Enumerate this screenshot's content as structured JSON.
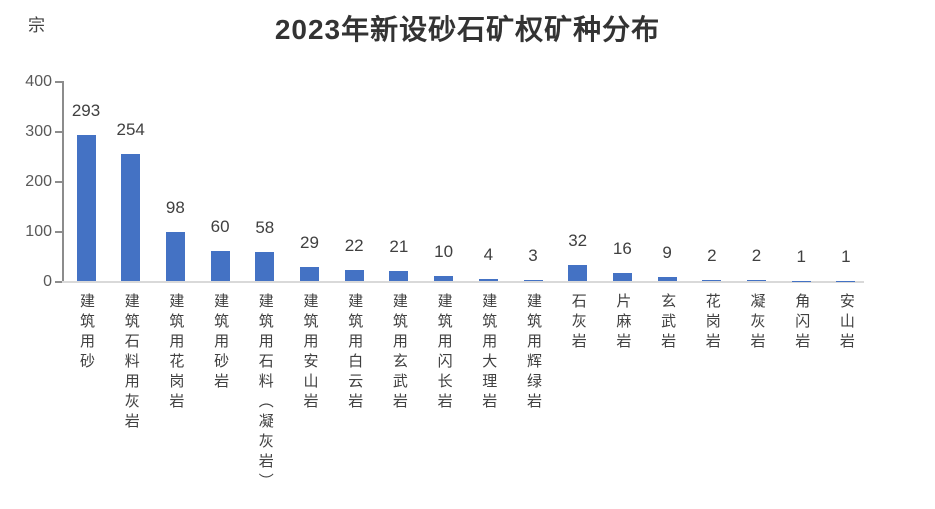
{
  "chart_data": {
    "type": "bar",
    "title": "2023年新设砂石矿权矿种分布",
    "unit_label": "宗",
    "categories": [
      "建筑用砂",
      "建筑石料用灰岩",
      "建筑用花岗岩",
      "建筑用砂岩",
      "建筑用石料（凝灰岩）",
      "建筑用安山岩",
      "建筑用白云岩",
      "建筑用玄武岩",
      "建筑用闪长岩",
      "建筑用大理岩",
      "建筑用辉绿岩",
      "石灰岩",
      "片麻岩",
      "玄武岩",
      "花岗岩",
      "凝灰岩",
      "角闪岩",
      "安山岩"
    ],
    "values": [
      293,
      254,
      98,
      60,
      58,
      29,
      22,
      21,
      10,
      4,
      3,
      32,
      16,
      9,
      2,
      2,
      1,
      1
    ],
    "yticks": [
      0,
      100,
      200,
      300,
      400
    ],
    "ylim": [
      0,
      400
    ],
    "xlabel": "",
    "ylabel": "宗",
    "bar_color": "#4472C4",
    "grid": "off",
    "legend": "none",
    "data_labels": "on"
  }
}
